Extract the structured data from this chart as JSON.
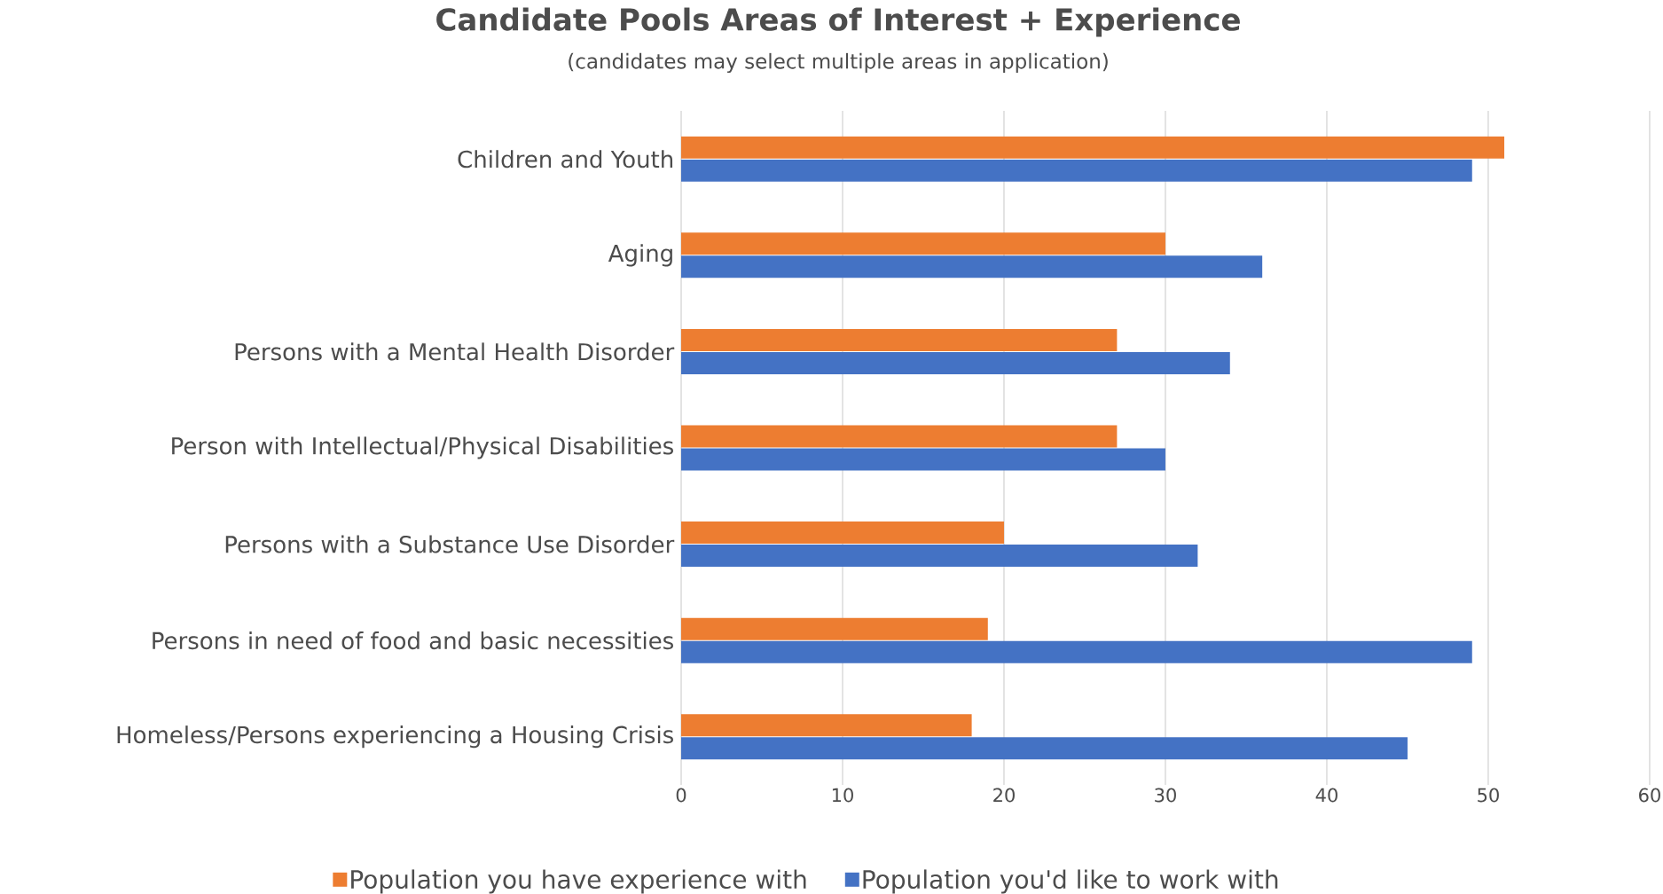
{
  "chart_data": {
    "type": "bar",
    "orientation": "horizontal",
    "title": "Candidate Pools Areas of Interest + Experience",
    "subtitle": "(candidates may select multiple areas in application)",
    "categories": [
      "Children and Youth",
      "Aging",
      "Persons with a Mental Health Disorder",
      "Person with Intellectual/Physical Disabilities",
      "Persons with a Substance Use Disorder",
      "Persons in need of food and basic necessities",
      "Homeless/Persons experiencing a Housing Crisis"
    ],
    "series": [
      {
        "name": "Population you have experience with",
        "color": "#ed7d31",
        "values": [
          51,
          30,
          27,
          27,
          20,
          19,
          18
        ]
      },
      {
        "name": "Population you'd like to work with",
        "color": "#4472c4",
        "values": [
          49,
          36,
          34,
          30,
          32,
          49,
          45
        ]
      }
    ],
    "xlim": [
      0,
      60
    ],
    "xticks": [
      0,
      10,
      20,
      30,
      40,
      50,
      60
    ],
    "grid": "x",
    "legend": "bottom"
  }
}
